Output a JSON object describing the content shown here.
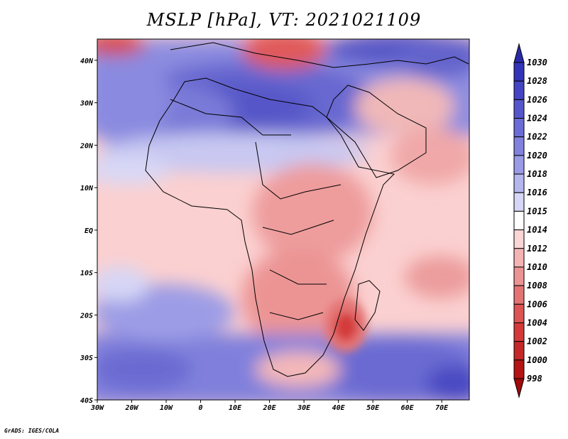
{
  "title": "MSLP [hPa], VT: 2021021109",
  "credit": "GrADS: IGES/COLA",
  "map": {
    "lon_range": [
      -30,
      78
    ],
    "lat_range": [
      -40,
      45
    ],
    "lon_ticks": [
      "30W",
      "20W",
      "10W",
      "0",
      "10E",
      "20E",
      "30E",
      "40E",
      "50E",
      "60E",
      "70E"
    ],
    "lon_values": [
      -30,
      -20,
      -10,
      0,
      10,
      20,
      30,
      40,
      50,
      60,
      70
    ],
    "lat_ticks": [
      "40N",
      "30N",
      "20N",
      "10N",
      "EQ",
      "10S",
      "20S",
      "30S",
      "40S"
    ],
    "lat_values": [
      40,
      30,
      20,
      10,
      0,
      -10,
      -20,
      -30,
      -40
    ]
  },
  "colorbar": {
    "levels": [
      "1030",
      "1028",
      "1026",
      "1024",
      "1022",
      "1020",
      "1018",
      "1016",
      "1015",
      "1014",
      "1012",
      "1010",
      "1008",
      "1006",
      "1004",
      "1002",
      "1000",
      "998"
    ],
    "colors": [
      "#2a2aa8",
      "#3434b8",
      "#4444c4",
      "#5656cc",
      "#6c6cd6",
      "#8282de",
      "#9a9ae6",
      "#b6b6ee",
      "#d6d6f6",
      "#ffffff",
      "#fbd6d6",
      "#f4b4b4",
      "#ec9494",
      "#e47474",
      "#dc5454",
      "#d43a3a",
      "#c42828",
      "#b41414",
      "#a00a0a"
    ]
  }
}
